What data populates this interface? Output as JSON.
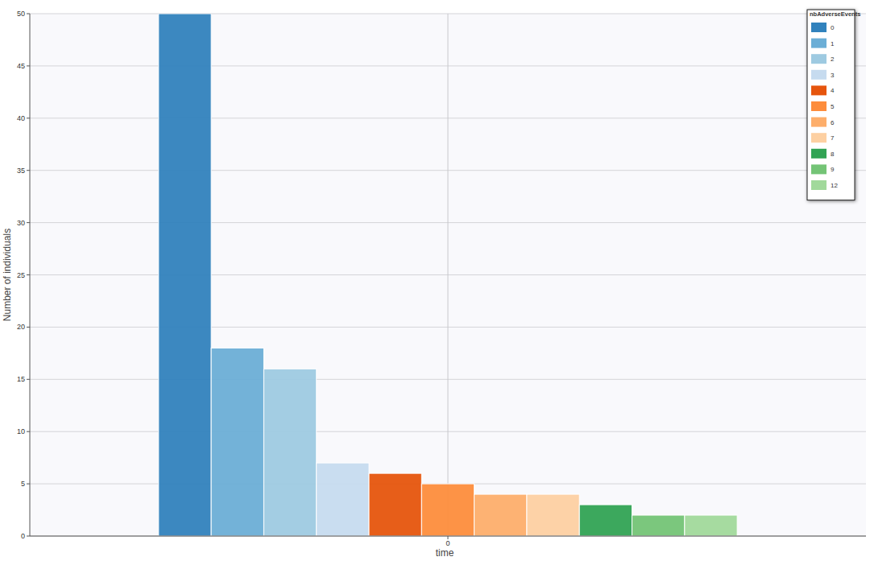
{
  "chart_data": {
    "type": "bar",
    "x_label": "time",
    "y_label": "Number of individuals",
    "categories": [
      "0"
    ],
    "ylim": [
      0,
      50
    ],
    "yticks": [
      0,
      5,
      10,
      15,
      20,
      25,
      30,
      35,
      40,
      45,
      50
    ],
    "grid": true,
    "legend": "top-right",
    "legend_title": "nbAdverseEvents",
    "series": [
      {
        "name": "0",
        "color": "#3182bd",
        "values": [
          50
        ]
      },
      {
        "name": "1",
        "color": "#6baed6",
        "values": [
          18
        ]
      },
      {
        "name": "2",
        "color": "#9ecae1",
        "values": [
          16
        ]
      },
      {
        "name": "3",
        "color": "#c6dbef",
        "values": [
          7
        ]
      },
      {
        "name": "4",
        "color": "#e6550d",
        "values": [
          6
        ]
      },
      {
        "name": "5",
        "color": "#fd8d3c",
        "values": [
          5
        ]
      },
      {
        "name": "6",
        "color": "#fdae6b",
        "values": [
          4
        ]
      },
      {
        "name": "7",
        "color": "#fdd0a2",
        "values": [
          4
        ]
      },
      {
        "name": "8",
        "color": "#31a354",
        "values": [
          3
        ]
      },
      {
        "name": "9",
        "color": "#74c476",
        "values": [
          2
        ]
      },
      {
        "name": "12",
        "color": "#a1d99b",
        "values": [
          2
        ]
      }
    ]
  }
}
